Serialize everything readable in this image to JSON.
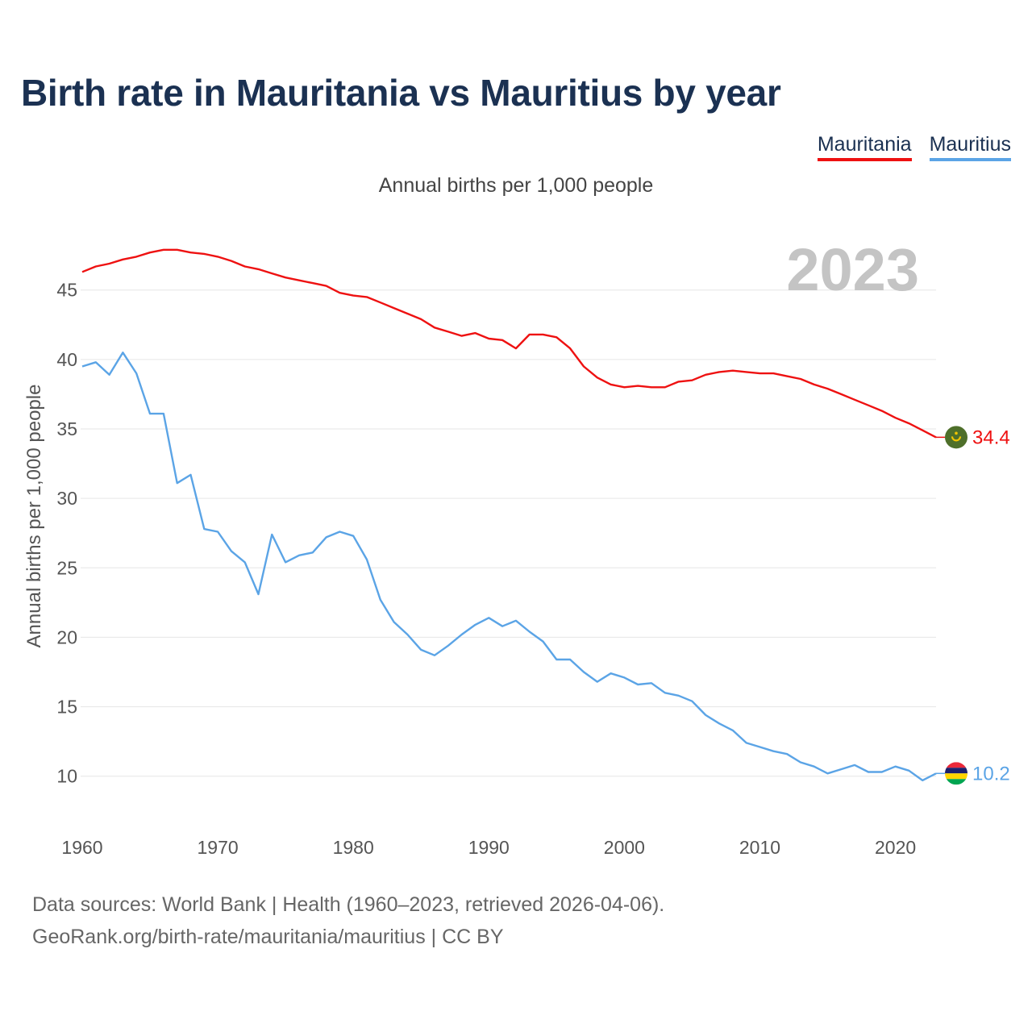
{
  "title": "Birth rate in Mauritania vs Mauritius by year",
  "subtitle": "Annual births per 1,000 people",
  "legend": [
    {
      "label": "Mauritania",
      "color": "#ee1111"
    },
    {
      "label": "Mauritius",
      "color": "#5ba4e6"
    }
  ],
  "year_label": "2023",
  "end_labels": {
    "Mauritania": "34.4",
    "Mauritius": "10.2"
  },
  "footer": {
    "line1": "Data sources: World Bank | Health (1960–2023, retrieved 2026-04-06).",
    "line2": "GeoRank.org/birth-rate/mauritania/mauritius | CC BY"
  },
  "chart_data": {
    "type": "line",
    "title": "Birth rate in Mauritania vs Mauritius by year",
    "subtitle": "Annual births per 1,000 people",
    "xlabel": "",
    "ylabel": "Annual births per 1,000 people",
    "xlim": [
      1960,
      2023
    ],
    "ylim": [
      7,
      50
    ],
    "x_ticks": [
      1960,
      1970,
      1980,
      1990,
      2000,
      2010,
      2020
    ],
    "y_ticks": [
      10,
      15,
      20,
      25,
      30,
      35,
      40,
      45
    ],
    "grid": true,
    "legend_position": "top-right",
    "x": [
      1960,
      1961,
      1962,
      1963,
      1964,
      1965,
      1966,
      1967,
      1968,
      1969,
      1970,
      1971,
      1972,
      1973,
      1974,
      1975,
      1976,
      1977,
      1978,
      1979,
      1980,
      1981,
      1982,
      1983,
      1984,
      1985,
      1986,
      1987,
      1988,
      1989,
      1990,
      1991,
      1992,
      1993,
      1994,
      1995,
      1996,
      1997,
      1998,
      1999,
      2000,
      2001,
      2002,
      2003,
      2004,
      2005,
      2006,
      2007,
      2008,
      2009,
      2010,
      2011,
      2012,
      2013,
      2014,
      2015,
      2016,
      2017,
      2018,
      2019,
      2020,
      2021,
      2022,
      2023
    ],
    "series": [
      {
        "name": "Mauritania",
        "color": "#ee1111",
        "values": [
          46.3,
          46.7,
          46.9,
          47.2,
          47.4,
          47.7,
          47.9,
          47.9,
          47.7,
          47.6,
          47.4,
          47.1,
          46.7,
          46.5,
          46.2,
          45.9,
          45.7,
          45.5,
          45.3,
          44.8,
          44.6,
          44.5,
          44.1,
          43.7,
          43.3,
          42.9,
          42.3,
          42.0,
          41.7,
          41.9,
          41.5,
          41.4,
          40.8,
          41.8,
          41.8,
          41.6,
          40.8,
          39.5,
          38.7,
          38.2,
          38.0,
          38.1,
          38.0,
          38.0,
          38.4,
          38.5,
          38.9,
          39.1,
          39.2,
          39.1,
          39.0,
          39.0,
          38.8,
          38.6,
          38.2,
          37.9,
          37.5,
          37.1,
          36.7,
          36.3,
          35.8,
          35.4,
          34.9,
          34.4
        ]
      },
      {
        "name": "Mauritius",
        "color": "#5ba4e6",
        "values": [
          39.5,
          39.8,
          38.9,
          40.5,
          39.0,
          36.1,
          36.1,
          31.1,
          31.7,
          27.8,
          27.6,
          26.2,
          25.4,
          23.1,
          27.4,
          25.4,
          25.9,
          26.1,
          27.2,
          27.6,
          27.3,
          25.6,
          22.7,
          21.1,
          20.2,
          19.1,
          18.7,
          19.4,
          20.2,
          20.9,
          21.4,
          20.8,
          21.2,
          20.4,
          19.7,
          18.4,
          18.4,
          17.5,
          16.8,
          17.4,
          17.1,
          16.6,
          16.7,
          16.0,
          15.8,
          15.4,
          14.4,
          13.8,
          13.3,
          12.4,
          12.1,
          11.8,
          11.6,
          11.0,
          10.7,
          10.2,
          10.5,
          10.8,
          10.3,
          10.3,
          10.7,
          10.4,
          9.7,
          10.2
        ]
      }
    ]
  }
}
